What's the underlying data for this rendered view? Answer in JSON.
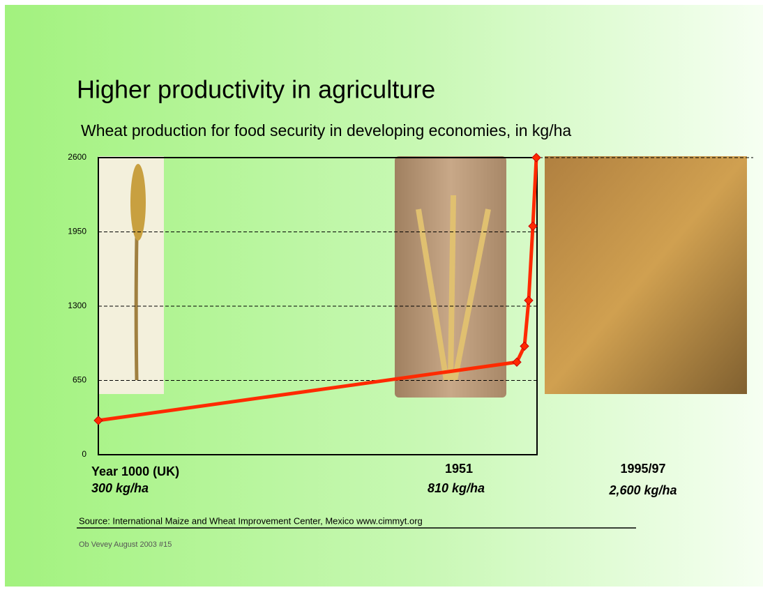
{
  "title": "Higher productivity in agriculture",
  "footer": {
    "source": "Source: International Maize and Wheat Improvement Center, Mexico www.cimmyt.org",
    "note": "Ob Vevey August 2003 #15"
  },
  "chart_data": {
    "type": "line",
    "title": "Wheat production for food security in developing economies, in kg/ha",
    "categories": [
      null,
      null,
      null,
      null,
      null,
      null
    ],
    "series": [
      {
        "name": null,
        "color": "#ff2a00",
        "values": [
          300,
          810,
          950,
          1350,
          2000,
          2600
        ]
      }
    ],
    "ylim": [
      0,
      2600
    ],
    "yticks": [
      0,
      650,
      1300,
      1950,
      2600
    ],
    "grid": true,
    "annotations": [
      "Year 1000 (UK)",
      "300 kg/ha",
      "1951",
      "810 kg/ha",
      "1995/97",
      "2,600 kg/ha"
    ]
  }
}
